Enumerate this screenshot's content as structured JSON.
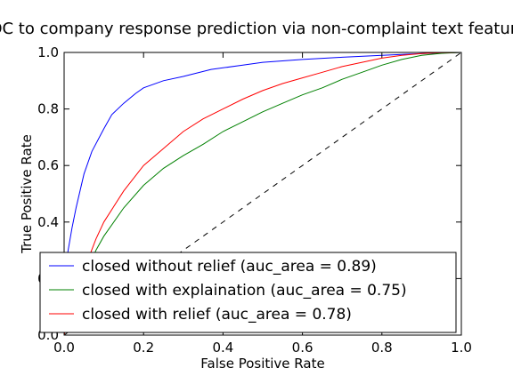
{
  "chart_data": {
    "type": "line",
    "title": "ROC to company response prediction via non-complaint text features",
    "xlabel": "False Positive Rate",
    "ylabel": "True Positive Rate",
    "xlim": [
      0.0,
      1.0
    ],
    "ylim": [
      0.0,
      1.0
    ],
    "xticks": [
      "0.0",
      "0.2",
      "0.4",
      "0.6",
      "0.8",
      "1.0"
    ],
    "yticks": [
      "0.0",
      "0.2",
      "0.4",
      "0.6",
      "0.8",
      "1.0"
    ],
    "grid": false,
    "legend_position": "lower-right",
    "series": [
      {
        "name": "closed without relief (auc_area = 0.89)",
        "color": "#0000ff",
        "x": [
          0,
          0.005,
          0.01,
          0.02,
          0.03,
          0.05,
          0.07,
          0.1,
          0.12,
          0.15,
          0.18,
          0.2,
          0.25,
          0.3,
          0.37,
          0.45,
          0.5,
          0.6,
          0.7,
          0.8,
          0.85,
          0.9,
          0.95,
          1.0
        ],
        "y": [
          0,
          0.25,
          0.3,
          0.38,
          0.45,
          0.57,
          0.65,
          0.73,
          0.78,
          0.82,
          0.855,
          0.875,
          0.9,
          0.915,
          0.94,
          0.955,
          0.965,
          0.975,
          0.983,
          0.99,
          0.993,
          0.996,
          0.998,
          1.0
        ]
      },
      {
        "name": "closed with explaination (auc_area = 0.75)",
        "color": "#008000",
        "x": [
          0,
          0.02,
          0.05,
          0.08,
          0.1,
          0.15,
          0.2,
          0.25,
          0.3,
          0.35,
          0.4,
          0.45,
          0.5,
          0.55,
          0.6,
          0.65,
          0.7,
          0.75,
          0.8,
          0.85,
          0.9,
          0.95,
          1.0
        ],
        "y": [
          0,
          0.09,
          0.2,
          0.3,
          0.35,
          0.45,
          0.53,
          0.59,
          0.635,
          0.675,
          0.72,
          0.755,
          0.79,
          0.82,
          0.85,
          0.875,
          0.905,
          0.93,
          0.955,
          0.975,
          0.99,
          0.997,
          1.0
        ]
      },
      {
        "name": "closed with relief (auc_area = 0.78)",
        "color": "#ff0000",
        "x": [
          0,
          0.02,
          0.05,
          0.08,
          0.1,
          0.15,
          0.2,
          0.25,
          0.3,
          0.35,
          0.4,
          0.45,
          0.5,
          0.55,
          0.6,
          0.65,
          0.7,
          0.75,
          0.8,
          0.85,
          0.9,
          0.95,
          1.0
        ],
        "y": [
          0,
          0.1,
          0.23,
          0.34,
          0.4,
          0.51,
          0.6,
          0.66,
          0.72,
          0.765,
          0.8,
          0.835,
          0.865,
          0.89,
          0.91,
          0.93,
          0.95,
          0.965,
          0.98,
          0.99,
          0.996,
          0.999,
          1.0
        ]
      }
    ],
    "reference_line": {
      "x": [
        0,
        1
      ],
      "y": [
        0,
        1
      ],
      "color": "#000000",
      "style": "dashed"
    }
  }
}
